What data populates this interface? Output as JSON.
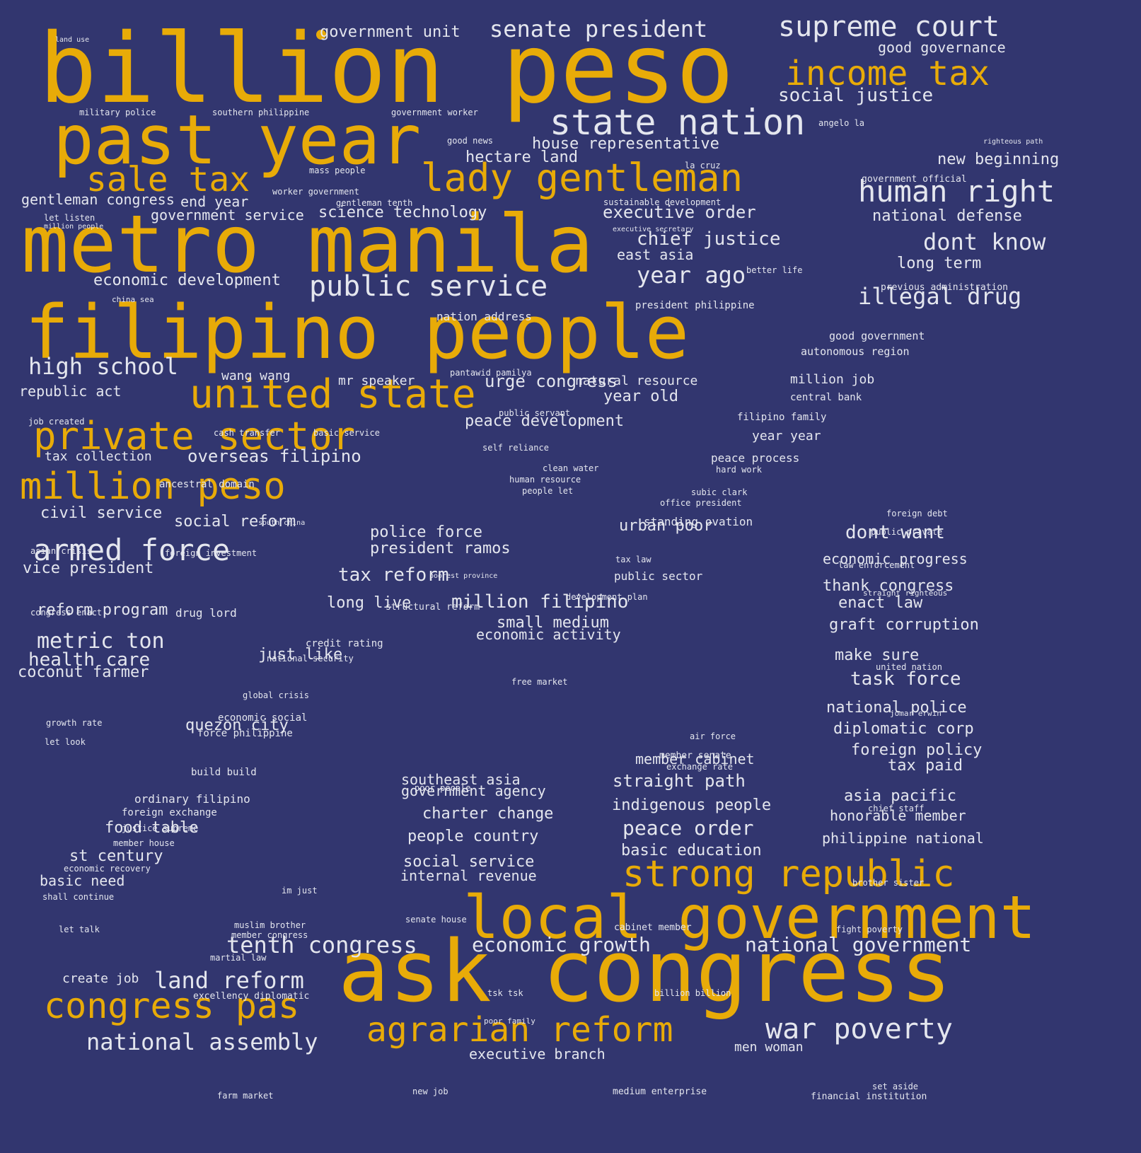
{
  "colors": {
    "background": "#32366f",
    "accent": "#e8ab08",
    "text": "#e4e6ee"
  },
  "words": [
    "billion peso",
    "metro manila",
    "filipino people",
    "past year",
    "ask congress",
    "local government",
    "lady gentleman",
    "united state",
    "private sector",
    "million peso",
    "sale tax",
    "income tax",
    "strong republic",
    "congress pas",
    "agrarian reform",
    "state nation",
    "supreme court",
    "human right",
    "public service",
    "armed force",
    "war poverty",
    "senate president",
    "high school",
    "year ago",
    "dont know",
    "illegal drug",
    "tenth congress",
    "national assembly",
    "land reform",
    "economic growth",
    "national government",
    "social justice",
    "chief justice",
    "executive order",
    "house representative",
    "new beginning",
    "hectare land",
    "science technology",
    "government service",
    "gentleman congress",
    "end year",
    "government unit",
    "good governance",
    "national defense",
    "long term",
    "economic development",
    "urge congress",
    "peace development",
    "year old",
    "east asia",
    "republic act",
    "overseas filipino",
    "tax collection",
    "civil service",
    "social reform",
    "vice president",
    "police force",
    "president ramos",
    "tax reform",
    "urban poor",
    "dont want",
    "economic progress",
    "million filipino",
    "long live",
    "small medium",
    "economic activity",
    "thank congress",
    "enact law",
    "graft corruption",
    "metric ton",
    "health care",
    "coconut farmer",
    "reform program",
    "just like",
    "make sure",
    "task force",
    "national police",
    "diplomatic corp",
    "foreign policy",
    "tax paid",
    "quezon city",
    "member cabinet",
    "straight path",
    "southeast asia",
    "government agency",
    "indigenous people",
    "asia pacific",
    "honorable member",
    "charter change",
    "people country",
    "peace order",
    "philippine national",
    "basic education",
    "social service",
    "internal revenue",
    "food table",
    "st century",
    "basic need",
    "executive branch",
    "men woman",
    "create job",
    "mr speaker",
    "wang wang",
    "natural resource",
    "million job",
    "year year",
    "standing ovation",
    "nation address",
    "drug lord",
    "public sector",
    "peace process",
    "ordinary filipino",
    "economic social",
    "force philippine",
    "build build",
    "martial law",
    "good government",
    "autonomous region",
    "central bank",
    "filipino family",
    "president philippine",
    "land use",
    "military police",
    "southern philippine",
    "government worker",
    "good news",
    "angelo la",
    "righteous path",
    "government official",
    "mass people",
    "la cruz",
    "worker government",
    "gentleman tenth",
    "sustainable development",
    "let listen",
    "million people",
    "executive secretary",
    "better life",
    "previous administration",
    "china sea",
    "pantawid pamilya",
    "job created",
    "public servant",
    "cash transfer",
    "basic service",
    "self reliance",
    "clean water",
    "hard work",
    "human resource",
    "people let",
    "ancestral domain",
    "subic clark",
    "office president",
    "foreign debt",
    "south china",
    "public private",
    "asian crisis",
    "foreign investment",
    "tax law",
    "law enforcement",
    "poorest province",
    "straight righteous",
    "congress enact",
    "structural reform",
    "development plan",
    "credit rating",
    "national security",
    "united nation",
    "free market",
    "global crisis",
    "jomar erwin",
    "growth rate",
    "air force",
    "let look",
    "member senate",
    "exchange rate",
    "poor people",
    "foreign exchange",
    "chief staff",
    "justice supreme",
    "member house",
    "economic recovery",
    "brother sister",
    "shall continue",
    "im just",
    "muslim brother",
    "senate house",
    "let talk",
    "member congress",
    "cabinet member",
    "fight poverty",
    "excellency diplomatic",
    "tsk tsk",
    "billion billion",
    "poor family",
    "set aside",
    "farm market",
    "new job",
    "medium enterprise",
    "financial institution"
  ]
}
